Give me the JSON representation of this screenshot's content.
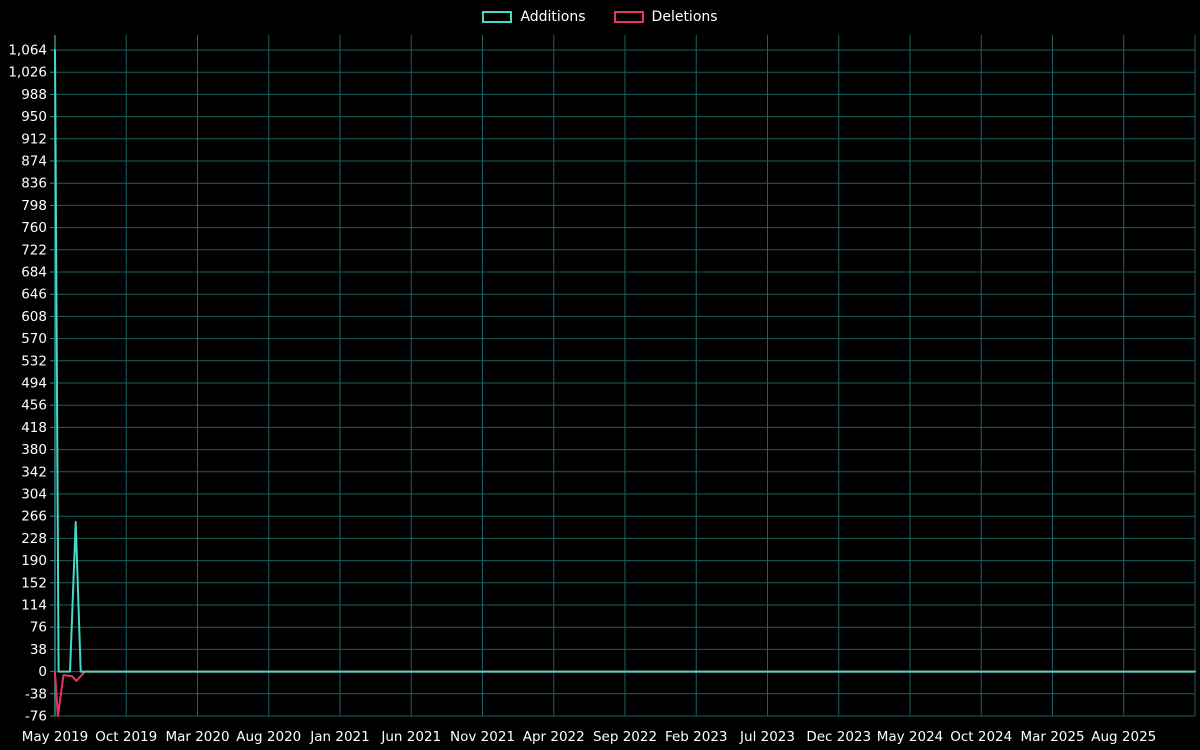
{
  "page": {
    "background": "#000000",
    "text_color": "#ffffff"
  },
  "chart_data": {
    "type": "line",
    "title": "",
    "legend": [
      "Additions",
      "Deletions"
    ],
    "legend_position": "top-center",
    "grid": true,
    "background": "#000000",
    "colors": {
      "grid": "#1b5f5f",
      "axis": "#2a8f8f",
      "text": "#ffffff",
      "additions": "#45d9c8",
      "deletions": "#e8365f"
    },
    "x_axis": {
      "start_label": "May 2019",
      "months_per_gridline": 5,
      "tick_labels": [
        "May 2019",
        "Oct 2019",
        "Mar 2020",
        "Aug 2020",
        "Jan 2021",
        "Jun 2021",
        "Nov 2021",
        "Apr 2022",
        "Sep 2022",
        "Feb 2023",
        "Jul 2023",
        "Dec 2023",
        "May 2024",
        "Oct 2024",
        "Mar 2025",
        "Aug 2025"
      ]
    },
    "y_axis": {
      "min": -76,
      "max": 1064,
      "step": 38,
      "ticks": [
        1064,
        1026,
        988,
        950,
        912,
        874,
        836,
        798,
        760,
        722,
        684,
        646,
        608,
        570,
        532,
        494,
        456,
        418,
        380,
        342,
        304,
        266,
        228,
        190,
        152,
        114,
        76,
        38,
        0,
        -38,
        -76
      ],
      "tick_labels": [
        "1,064",
        "1,026",
        "988",
        "950",
        "912",
        "874",
        "836",
        "798",
        "760",
        "722",
        "684",
        "646",
        "608",
        "570",
        "532",
        "494",
        "456",
        "418",
        "380",
        "342",
        "304",
        "266",
        "228",
        "190",
        "152",
        "114",
        "76",
        "38",
        "0",
        "-38",
        "-76"
      ]
    },
    "series": [
      {
        "name": "Additions",
        "color": "#45d9c8",
        "points_months_vs_value": [
          [
            0,
            1064
          ],
          [
            0.25,
            0
          ],
          [
            1.05,
            0
          ],
          [
            1.45,
            256
          ],
          [
            1.8,
            0
          ],
          [
            80,
            0
          ]
        ]
      },
      {
        "name": "Deletions",
        "color": "#e8365f",
        "points_months_vs_value": [
          [
            0,
            -2
          ],
          [
            0.2,
            -76
          ],
          [
            0.6,
            -6
          ],
          [
            1.2,
            -8
          ],
          [
            1.5,
            -16
          ],
          [
            2.1,
            0
          ],
          [
            80,
            0
          ]
        ]
      }
    ]
  }
}
